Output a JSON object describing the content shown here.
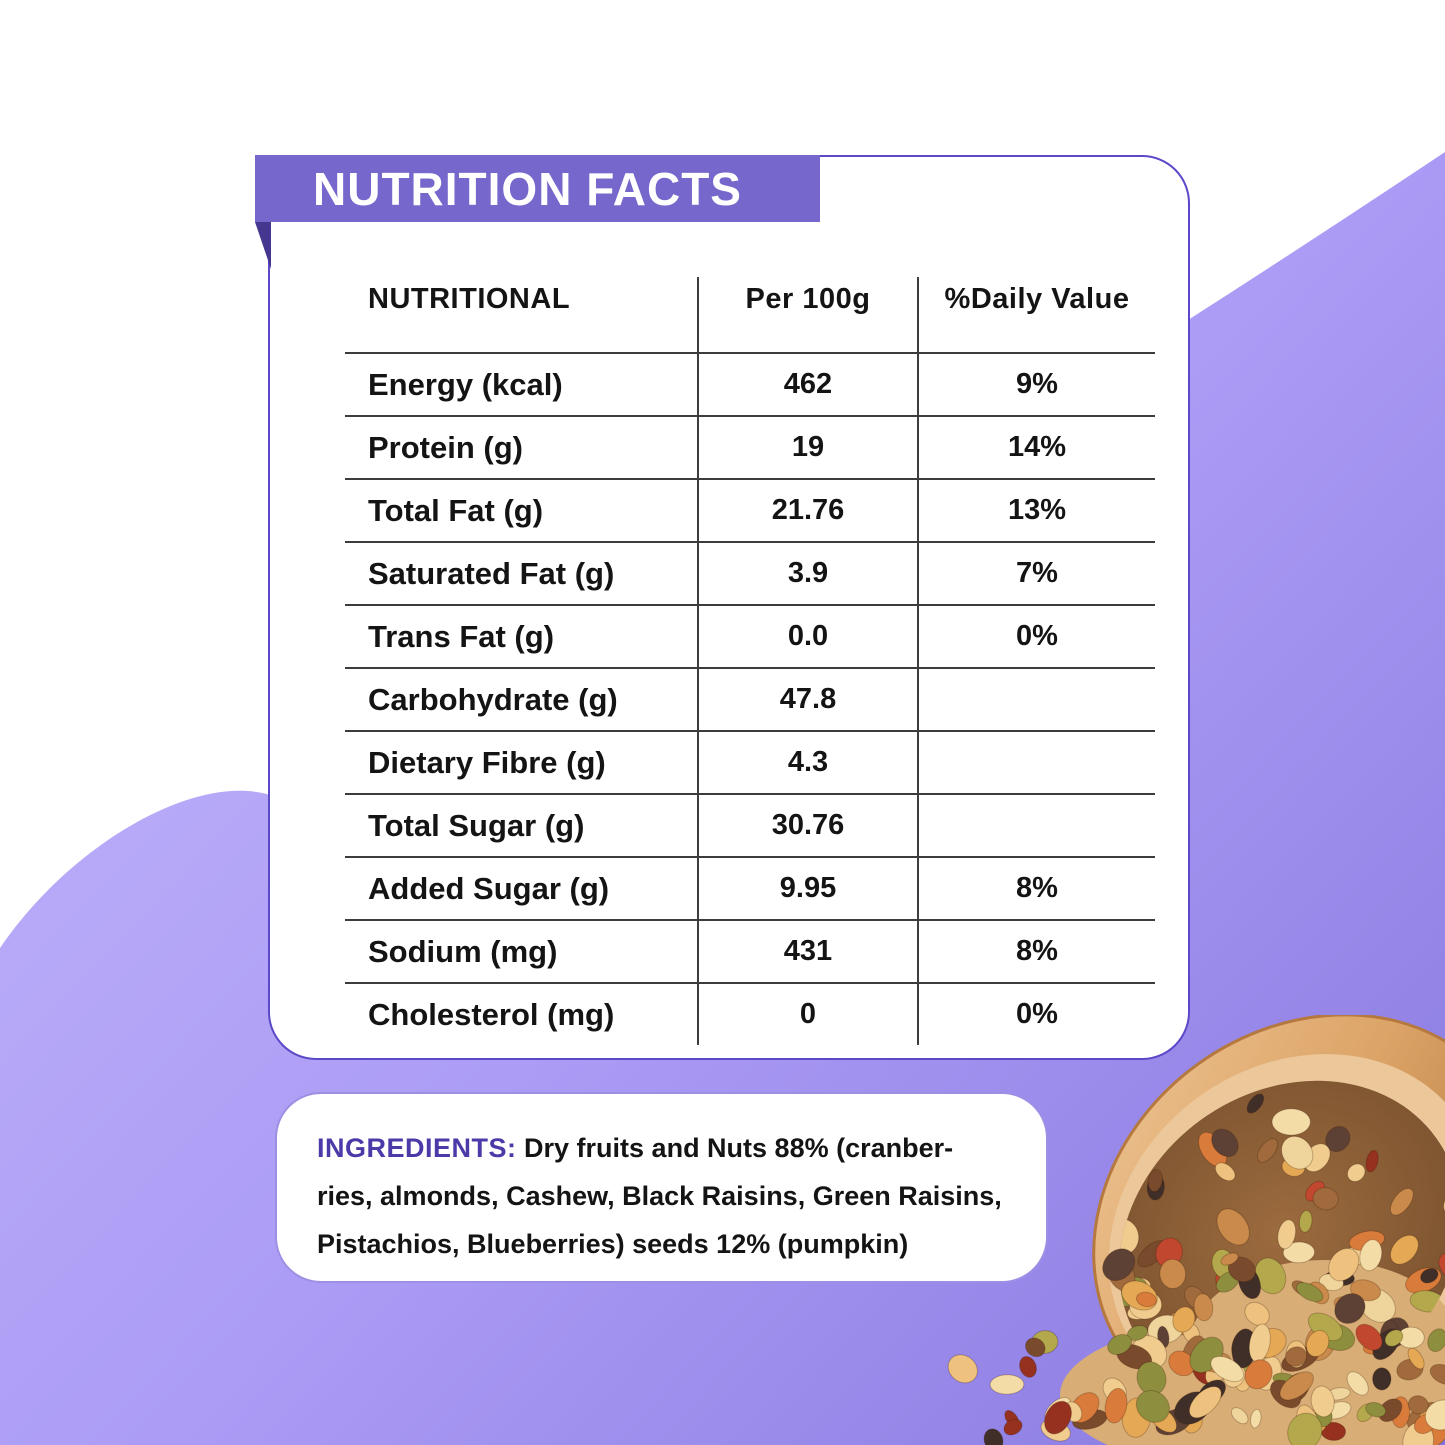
{
  "header": {
    "title": "NUTRITION FACTS"
  },
  "table": {
    "columns": [
      "NUTRITIONAL",
      "Per 100g",
      "%Daily Value"
    ],
    "rows": [
      {
        "label": "Energy (kcal)",
        "per100g": "462",
        "dailyValue": "9%"
      },
      {
        "label": "Protein (g)",
        "per100g": "19",
        "dailyValue": "14%"
      },
      {
        "label": "Total Fat (g)",
        "per100g": "21.76",
        "dailyValue": "13%"
      },
      {
        "label": "Saturated Fat (g)",
        "per100g": "3.9",
        "dailyValue": "7%"
      },
      {
        "label": "Trans Fat (g)",
        "per100g": "0.0",
        "dailyValue": "0%"
      },
      {
        "label": "Carbohydrate (g)",
        "per100g": "47.8",
        "dailyValue": ""
      },
      {
        "label": "Dietary Fibre (g)",
        "per100g": "4.3",
        "dailyValue": ""
      },
      {
        "label": "Total Sugar (g)",
        "per100g": "30.76",
        "dailyValue": ""
      },
      {
        "label": "Added Sugar (g)",
        "per100g": "9.95",
        "dailyValue": "8%"
      },
      {
        "label": "Sodium (mg)",
        "per100g": "431",
        "dailyValue": "8%"
      },
      {
        "label": "Cholesterol (mg)",
        "per100g": "0",
        "dailyValue": "0%"
      }
    ]
  },
  "ingredients": {
    "label": "INGREDIENTS:",
    "text": "Dry fruits and Nuts 88% (cranber-ries, almonds, Cashew, Black Raisins, Green Raisins, Pistachios, Blueberries) seeds 12% (pumpkin)"
  },
  "illustration": {
    "name": "trail-mix-bowl-photo"
  },
  "colors": {
    "banner_bg": "#7667cc",
    "banner_fold": "#453790",
    "card_border": "#5a49c8",
    "table_line": "#3c3c3c",
    "text": "#141414",
    "ingredients_border": "#9d8fe4",
    "ingredients_label": "#4b3ba9",
    "bg_purple_light": "#c2b5fa",
    "bg_purple_mid": "#ab9bf5",
    "bg_purple_dark": "#8677de",
    "bowl_wood": "#dfa96f"
  }
}
